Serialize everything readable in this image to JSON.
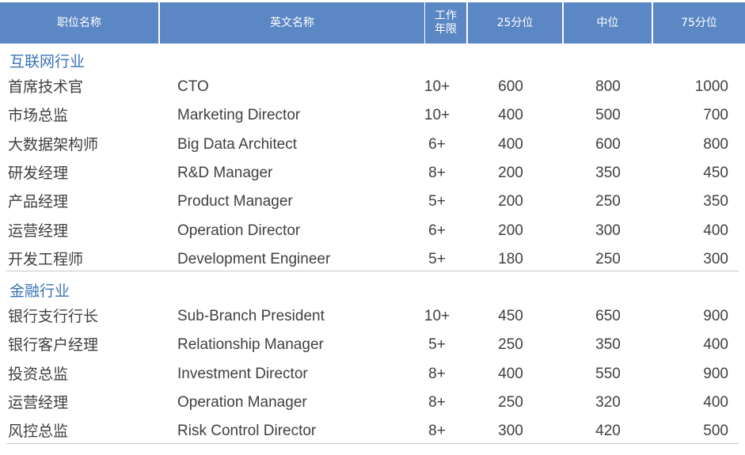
{
  "header": [
    "职位名称",
    "英文名称",
    "工作年限",
    "25分位",
    "中位",
    "75分位"
  ],
  "sections": [
    {
      "title": "互联网行业",
      "rows": [
        [
          "首席技术官",
          "CTO",
          "10+",
          "600",
          "800",
          "1000"
        ],
        [
          "市场总监",
          "Marketing Director",
          "10+",
          "400",
          "500",
          "700"
        ],
        [
          "大数据架构师",
          "Big Data Architect",
          "6+",
          "400",
          "600",
          "800"
        ],
        [
          "研发经理",
          "R&D Manager",
          "8+",
          "200",
          "350",
          "450"
        ],
        [
          "产品经理",
          "Product Manager",
          "5+",
          "200",
          "250",
          "350"
        ],
        [
          "运营经理",
          "Operation Director",
          "6+",
          "200",
          "300",
          "400"
        ],
        [
          "开发工程师",
          "Development Engineer",
          "5+",
          "180",
          "250",
          "300"
        ]
      ]
    },
    {
      "title": "金融行业",
      "rows": [
        [
          "银行支行行长",
          "Sub-Branch President",
          "10+",
          "450",
          "650",
          "900"
        ],
        [
          "银行客户经理",
          "Relationship Manager",
          "5+",
          "250",
          "350",
          "400"
        ],
        [
          "投资总监",
          "Investment Director",
          "8+",
          "400",
          "550",
          "900"
        ],
        [
          "运营经理",
          "Operation Manager",
          "8+",
          "250",
          "320",
          "400"
        ],
        [
          "风控总监",
          "Risk Control Director",
          "8+",
          "300",
          "420",
          "500"
        ]
      ]
    }
  ]
}
